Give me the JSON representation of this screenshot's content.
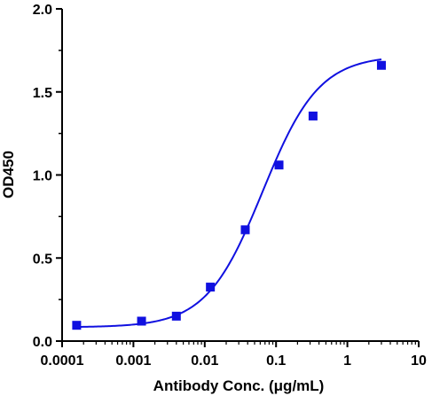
{
  "chart_data": {
    "type": "scatter",
    "title": "",
    "xlabel": "Antibody Conc. (μg/mL)",
    "ylabel": "OD450",
    "x_scale": "log",
    "xlim": [
      0.0001,
      10
    ],
    "ylim": [
      0,
      2.0
    ],
    "x_ticks": [
      "0.0001",
      "0.001",
      "0.01",
      "0.1",
      "1",
      "10"
    ],
    "y_ticks": [
      "0.0",
      "0.5",
      "1.0",
      "1.5",
      "2.0"
    ],
    "grid": false,
    "legend": "none",
    "colors": {
      "series": "#1010e0",
      "axis": "#000000"
    },
    "series": [
      {
        "marker": "square",
        "fit": "4PL sigmoid curve",
        "points": [
          {
            "x": 0.00016,
            "y": 0.095
          },
          {
            "x": 0.0013,
            "y": 0.12
          },
          {
            "x": 0.004,
            "y": 0.15
          },
          {
            "x": 0.012,
            "y": 0.325
          },
          {
            "x": 0.037,
            "y": 0.67
          },
          {
            "x": 0.11,
            "y": 1.06
          },
          {
            "x": 0.33,
            "y": 1.355
          },
          {
            "x": 3.0,
            "y": 1.66
          }
        ]
      }
    ]
  }
}
